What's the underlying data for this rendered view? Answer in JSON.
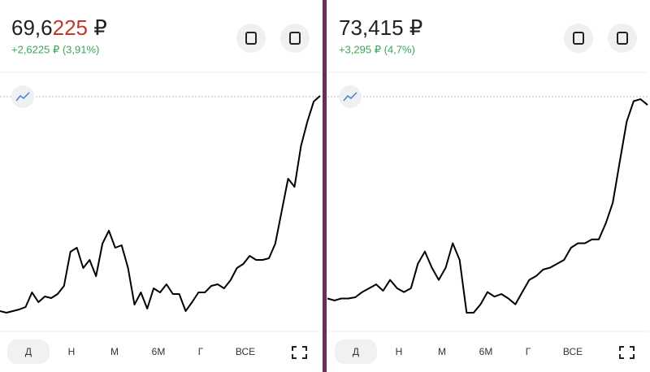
{
  "chart_data": [
    {
      "type": "line",
      "price_main": "69,6",
      "price_highlight": "225",
      "currency": "₽",
      "change": "+2,6225 ₽ (3,91%)",
      "tabs": [
        "Д",
        "Н",
        "М",
        "6М",
        "Г",
        "ВСЕ"
      ],
      "color": "#000000",
      "ylim": [
        66.85,
        69.7
      ],
      "values": [
        67.02,
        67.0,
        67.02,
        67.04,
        67.07,
        67.25,
        67.13,
        67.2,
        67.18,
        67.23,
        67.33,
        67.75,
        67.8,
        67.55,
        67.65,
        67.45,
        67.85,
        68.01,
        67.8,
        67.83,
        67.55,
        67.1,
        67.25,
        67.05,
        67.3,
        67.25,
        67.35,
        67.23,
        67.23,
        67.02,
        67.13,
        67.25,
        67.25,
        67.33,
        67.35,
        67.3,
        67.4,
        67.55,
        67.6,
        67.7,
        67.65,
        67.65,
        67.67,
        67.85,
        68.25,
        68.65,
        68.55,
        69.05,
        69.35,
        69.6,
        69.67
      ]
    },
    {
      "type": "line",
      "price_main": "73,415",
      "currency": "₽",
      "change": "+3,295 ₽ (4,7%)",
      "tabs": [
        "Д",
        "Н",
        "М",
        "6М",
        "Г",
        "ВСЕ"
      ],
      "color": "#000000",
      "ylim": [
        70.0,
        73.6
      ],
      "values": [
        70.41,
        70.38,
        70.41,
        70.41,
        70.43,
        70.51,
        70.57,
        70.63,
        70.53,
        70.7,
        70.57,
        70.51,
        70.57,
        70.95,
        71.14,
        70.89,
        70.7,
        70.89,
        71.27,
        71.01,
        70.19,
        70.19,
        70.32,
        70.51,
        70.44,
        70.48,
        70.41,
        70.32,
        70.51,
        70.7,
        70.76,
        70.86,
        70.89,
        70.95,
        71.01,
        71.2,
        71.27,
        71.27,
        71.33,
        71.33,
        71.58,
        71.9,
        72.53,
        73.16,
        73.48,
        73.51,
        73.42
      ]
    }
  ]
}
